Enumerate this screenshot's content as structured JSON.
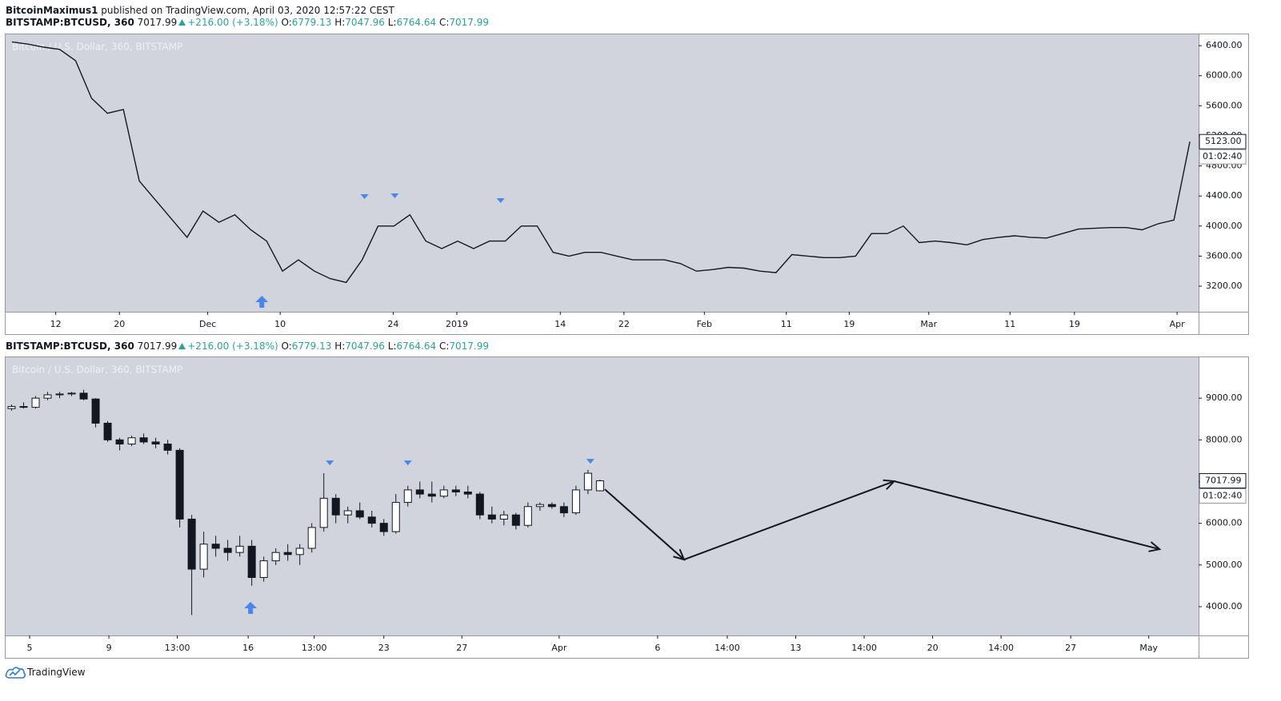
{
  "header": {
    "author": "BitcoinMaximus1",
    "published": "published on TradingView.com, April 03, 2020 12:57:22 CEST"
  },
  "footer": {
    "brand": "TradingView"
  },
  "chart_data": [
    {
      "type": "line",
      "color": "#131722",
      "legend": {
        "symbol": "BITSTAMP:BTCUSD, 360",
        "last": "7017.99",
        "change": "+216.00 (+3.18%)",
        "items": [
          {
            "label": "O:",
            "value": "6779.13"
          },
          {
            "label": "H:",
            "value": "7047.96"
          },
          {
            "label": "L:",
            "value": "6764.64"
          },
          {
            "label": "C:",
            "value": "7017.99"
          }
        ]
      },
      "watermark": "Bitcoin / U.S. Dollar, 360, BITSTAMP",
      "values": [
        6450,
        6420,
        6380,
        6350,
        6200,
        5700,
        5500,
        5550,
        4600,
        4350,
        4100,
        3850,
        4200,
        4050,
        4150,
        3950,
        3800,
        3400,
        3550,
        3400,
        3300,
        3250,
        3550,
        4000,
        4000,
        4150,
        3800,
        3700,
        3800,
        3700,
        3800,
        3800,
        4000,
        4000,
        3650,
        3600,
        3650,
        3650,
        3600,
        3550,
        3550,
        3550,
        3500,
        3400,
        3420,
        3450,
        3440,
        3400,
        3380,
        3620,
        3600,
        3580,
        3580,
        3600,
        3900,
        3900,
        4000,
        3780,
        3800,
        3780,
        3750,
        3820,
        3850,
        3870,
        3850,
        3840,
        3900,
        3960,
        3970,
        3980,
        3980,
        3950,
        4030,
        4080,
        5123
      ],
      "xlim": [
        -0.4,
        74.55
      ],
      "xticks": [
        {
          "value": 2.75,
          "label": "12"
        },
        {
          "value": 6.75,
          "label": "20"
        },
        {
          "value": 12.3,
          "label": "Dec"
        },
        {
          "value": 16.85,
          "label": "10"
        },
        {
          "value": 23.95,
          "label": "24"
        },
        {
          "value": 27.95,
          "label": "2019"
        },
        {
          "value": 34.45,
          "label": "14"
        },
        {
          "value": 38.45,
          "label": "22"
        },
        {
          "value": 43.5,
          "label": "Feb"
        },
        {
          "value": 48.65,
          "label": "11"
        },
        {
          "value": 52.6,
          "label": "19"
        },
        {
          "value": 57.6,
          "label": "Mar"
        },
        {
          "value": 62.7,
          "label": "11"
        },
        {
          "value": 66.75,
          "label": "19"
        },
        {
          "value": 73.2,
          "label": "Apr"
        }
      ],
      "ylim": [
        2860,
        6550
      ],
      "yticks": [
        {
          "value": 3200,
          "label": "3200.00"
        },
        {
          "value": 3600,
          "label": "3600.00"
        },
        {
          "value": 4000,
          "label": "4000.00"
        },
        {
          "value": 4400,
          "label": "4400.00"
        },
        {
          "value": 4800,
          "label": "4800.00"
        },
        {
          "value": 5200,
          "label": "5200.00"
        },
        {
          "value": 5600,
          "label": "5600.00"
        },
        {
          "value": 6000,
          "label": "6000.00"
        },
        {
          "value": 6400,
          "label": "6400.00"
        }
      ],
      "last_price": 5123,
      "last_label": "5123.00",
      "countdown": "01:02:40",
      "markers": [
        {
          "x": 22.15,
          "price": 4391,
          "direction": "down"
        },
        {
          "x": 24.05,
          "price": 4402,
          "direction": "down"
        },
        {
          "x": 30.7,
          "price": 4338,
          "direction": "down"
        },
        {
          "x": 15.7,
          "price": 2987,
          "direction": "up"
        }
      ],
      "marker_color": "#4a86e8"
    },
    {
      "type": "candlestick",
      "legend": {
        "symbol": "BITSTAMP:BTCUSD, 360",
        "last": "7017.99",
        "change": "+216.00 (+3.18%)",
        "items": [
          {
            "label": "O:",
            "value": "6779.13"
          },
          {
            "label": "H:",
            "value": "7047.96"
          },
          {
            "label": "L:",
            "value": "6764.64"
          },
          {
            "label": "C:",
            "value": "7017.99"
          }
        ]
      },
      "watermark": "Bitcoin / U.S. Dollar, 360, BITSTAMP",
      "open": [
        8750,
        8800,
        8780,
        9000,
        9080,
        9100,
        9120,
        8980,
        8400,
        8000,
        7900,
        8050,
        7950,
        7900,
        7750,
        6100,
        4900,
        5500,
        5400,
        5300,
        5450,
        4700,
        5100,
        5300,
        5250,
        5400,
        5900,
        6600,
        6200,
        6300,
        6150,
        6000,
        5800,
        6500,
        6800,
        6700,
        6650,
        6800,
        6750,
        6700,
        6200,
        6100,
        6200,
        5950,
        6400,
        6450,
        6400,
        6250,
        6800,
        6779.13
      ],
      "high": [
        8850,
        8900,
        9050,
        9150,
        9150,
        9150,
        9200,
        9000,
        8450,
        8050,
        8100,
        8150,
        8050,
        8000,
        7800,
        6200,
        5800,
        5700,
        5600,
        5700,
        5600,
        5200,
        5400,
        5500,
        5500,
        6000,
        7200,
        6700,
        6400,
        6500,
        6300,
        6100,
        6700,
        6900,
        7000,
        7000,
        6900,
        6900,
        6900,
        6750,
        6400,
        6300,
        6250,
        6500,
        6500,
        6500,
        6500,
        6900,
        7280,
        7047.96
      ],
      "low": [
        8700,
        8750,
        8750,
        8950,
        9000,
        9050,
        8950,
        8300,
        7950,
        7750,
        7850,
        7900,
        7800,
        7650,
        5900,
        3800,
        4700,
        5200,
        5100,
        5200,
        4500,
        4600,
        5000,
        5100,
        5000,
        5300,
        5800,
        6000,
        6000,
        6100,
        5900,
        5700,
        5750,
        6400,
        6600,
        6500,
        6600,
        6650,
        6600,
        6100,
        6000,
        5950,
        5850,
        5900,
        6300,
        6350,
        6150,
        6200,
        6700,
        6764.64
      ],
      "close": [
        8800,
        8780,
        9000,
        9080,
        9100,
        9120,
        8980,
        8400,
        8000,
        7900,
        8050,
        7950,
        7900,
        7750,
        6100,
        4900,
        5500,
        5400,
        5300,
        5450,
        4700,
        5100,
        5300,
        5250,
        5400,
        5900,
        6600,
        6200,
        6300,
        6150,
        6000,
        5800,
        6500,
        6800,
        6700,
        6650,
        6800,
        6750,
        6700,
        6200,
        6100,
        6200,
        5950,
        6400,
        6450,
        6400,
        6250,
        6800,
        7200,
        7017.99
      ],
      "up_color": "#ffffff",
      "down_color": "#131722",
      "xlim": [
        -0.5,
        98.85
      ],
      "xticks": [
        {
          "value": 1.5,
          "label": "5"
        },
        {
          "value": 8.1,
          "label": "9"
        },
        {
          "value": 13.8,
          "label": "13:00"
        },
        {
          "value": 19.7,
          "label": "16"
        },
        {
          "value": 25.2,
          "label": "13:00"
        },
        {
          "value": 31,
          "label": "23"
        },
        {
          "value": 37.5,
          "label": "27"
        },
        {
          "value": 45.6,
          "label": "Apr"
        },
        {
          "value": 53.8,
          "label": "6"
        },
        {
          "value": 59.6,
          "label": "14:00"
        },
        {
          "value": 65.3,
          "label": "13"
        },
        {
          "value": 71,
          "label": "14:00"
        },
        {
          "value": 76.7,
          "label": "20"
        },
        {
          "value": 82.4,
          "label": "14:00"
        },
        {
          "value": 88.2,
          "label": "27"
        },
        {
          "value": 94.7,
          "label": "May"
        }
      ],
      "ylim": [
        3310,
        9980
      ],
      "yticks": [
        {
          "value": 4000,
          "label": "4000.00"
        },
        {
          "value": 5000,
          "label": "5000.00"
        },
        {
          "value": 6000,
          "label": "6000.00"
        },
        {
          "value": 7000,
          "label": "7000.00"
        },
        {
          "value": 8000,
          "label": "8000.00"
        },
        {
          "value": 9000,
          "label": "9000.00"
        }
      ],
      "last_price": 7017.99,
      "last_label": "7017.99",
      "countdown": "01:02:40",
      "markers": [
        {
          "x": 26.5,
          "price": 7448,
          "direction": "down"
        },
        {
          "x": 33.0,
          "price": 7448,
          "direction": "down"
        },
        {
          "x": 48.2,
          "price": 7487,
          "direction": "down"
        },
        {
          "x": 19.9,
          "price": 3962,
          "direction": "up"
        }
      ],
      "marker_color": "#4a86e8",
      "projection": {
        "x": [
          49.4,
          56,
          73.5,
          95.6
        ],
        "y": [
          6816,
          5130,
          7008,
          5379
        ]
      }
    }
  ]
}
